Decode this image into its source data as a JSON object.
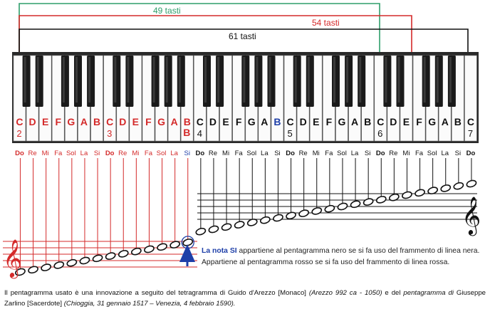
{
  "ranges": [
    {
      "label": "49 tasti",
      "color": "#2e9e6a"
    },
    {
      "label": "54 tasti",
      "color": "#d42a2a"
    },
    {
      "label": "61 tasti",
      "color": "#111111"
    }
  ],
  "keys": [
    "C",
    "D",
    "E",
    "F",
    "G",
    "A",
    "B",
    "C",
    "D",
    "E",
    "F",
    "G",
    "A",
    "B",
    "C",
    "D",
    "E",
    "F",
    "G",
    "A",
    "B",
    "C",
    "D",
    "E",
    "F",
    "G",
    "A",
    "B",
    "C",
    "D",
    "E",
    "F",
    "G",
    "A",
    "B",
    "C"
  ],
  "octave_marks": [
    {
      "index": 0,
      "label": "2"
    },
    {
      "index": 7,
      "label": "3"
    },
    {
      "index": 14,
      "label": "4"
    },
    {
      "index": 21,
      "label": "5"
    },
    {
      "index": 28,
      "label": "6"
    },
    {
      "index": 35,
      "label": "7"
    }
  ],
  "extra_b_label": "B",
  "solfege": [
    "Do",
    "Re",
    "Mi",
    "Fa",
    "Sol",
    "La",
    "Si",
    "Do",
    "Re",
    "Mi",
    "Fa",
    "Sol",
    "La",
    "Si",
    "Do",
    "Re",
    "Mi",
    "Fa",
    "Sol",
    "La",
    "Si",
    "Do",
    "Re",
    "Mi",
    "Fa",
    "Sol",
    "La",
    "Si",
    "Do",
    "Re",
    "Mi",
    "Fa",
    "Sol",
    "La",
    "Si",
    "Do"
  ],
  "description": {
    "highlight": "La nota SI",
    "text": " appartiene al pentagramma nero se si fa uso del frammento di linea nera. Appartiene al pentagramma rosso se si fa uso del frammento di linea rossa."
  },
  "caption": {
    "part1": "Il pentagramma usato è una innovazione a seguito del tetragramma di Guido d'Arezzo [Monaco] ",
    "part2": "(Arezzo 992 ca - 1050)",
    "part3": " e del ",
    "part4": "pentagramma di ",
    "part5": "Giuseppe Zarlino [Sacerdote] ",
    "part6": "(Chioggia, 31 gennaio 1517 – Venezia, 4 febbraio 1590)."
  },
  "colors": {
    "red": "#d42a2a",
    "green": "#2e9e6a",
    "blue": "#1e3fa8",
    "black": "#111111"
  },
  "icons": [
    "treble-clef-icon",
    "up-arrow-icon"
  ]
}
